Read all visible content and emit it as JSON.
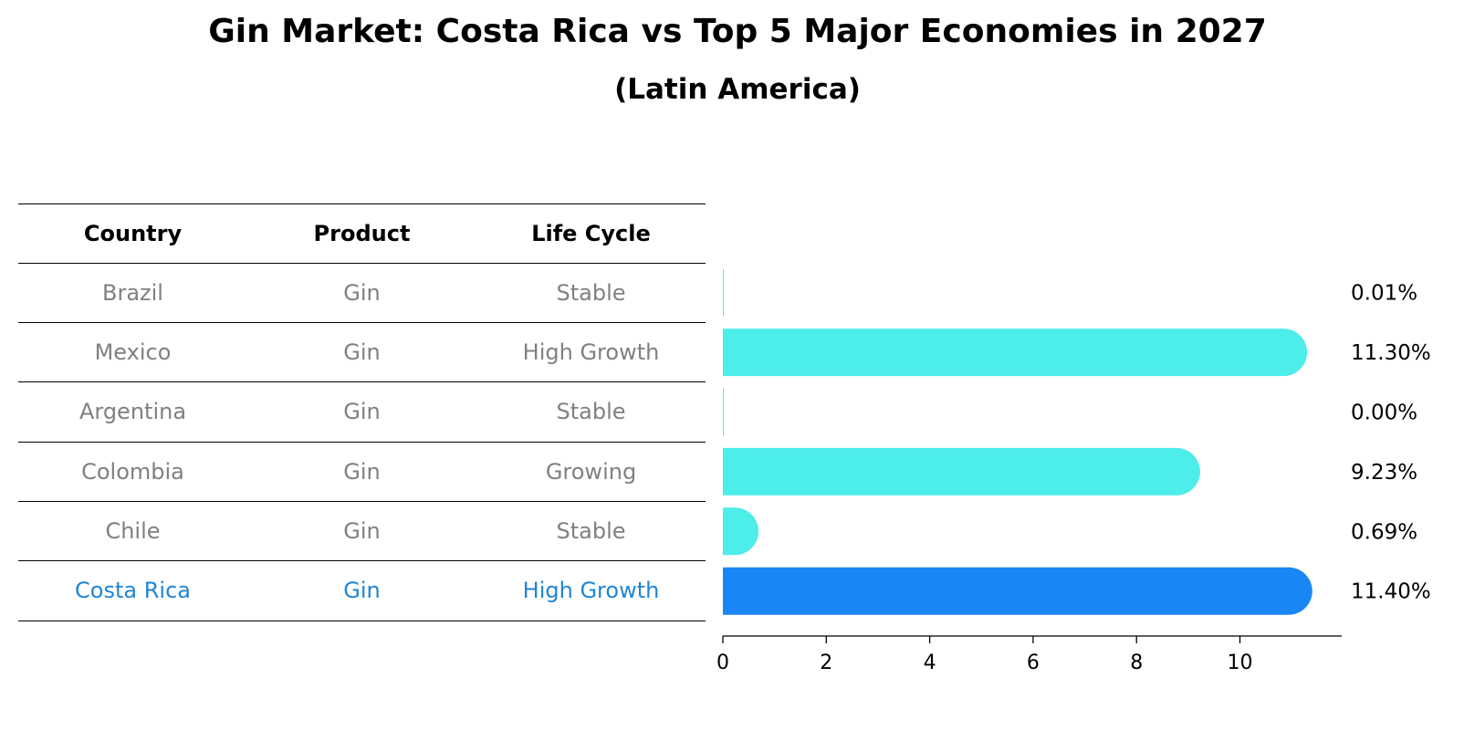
{
  "header": {
    "title": "Gin Market: Costa Rica vs Top 5 Major Economies in 2027",
    "subtitle": "(Latin America)"
  },
  "table": {
    "columns": [
      "Country",
      "Product",
      "Life Cycle"
    ],
    "rows": [
      {
        "country": "Brazil",
        "product": "Gin",
        "life_cycle": "Stable"
      },
      {
        "country": "Mexico",
        "product": "Gin",
        "life_cycle": "High Growth"
      },
      {
        "country": "Argentina",
        "product": "Gin",
        "life_cycle": "Stable"
      },
      {
        "country": "Colombia",
        "product": "Gin",
        "life_cycle": "Growing"
      },
      {
        "country": "Chile",
        "product": "Gin",
        "life_cycle": "Stable"
      },
      {
        "country": "Costa Rica",
        "product": "Gin",
        "life_cycle": "High Growth"
      }
    ]
  },
  "colors": {
    "bar": "#4dede9",
    "highlight_bar": "#1a86f5",
    "row_text": "#808080",
    "highlight_text": "#1f86d6"
  },
  "chart_data": {
    "type": "bar",
    "orientation": "horizontal",
    "title": "Gin Market: Costa Rica vs Top 5 Major Economies in 2027",
    "subtitle": "(Latin America)",
    "categories": [
      "Brazil",
      "Mexico",
      "Argentina",
      "Colombia",
      "Chile",
      "Costa Rica"
    ],
    "values": [
      0.01,
      11.3,
      0.0,
      9.23,
      0.69,
      11.4
    ],
    "value_labels": [
      "0.01%",
      "11.30%",
      "0.00%",
      "9.23%",
      "0.69%",
      "11.40%"
    ],
    "highlight": "Costa Rica",
    "xlim": [
      0,
      12
    ],
    "xticks": [
      0,
      2,
      4,
      6,
      8,
      10
    ],
    "xlabel": "",
    "ylabel": "",
    "grid": false,
    "legend": "none"
  }
}
